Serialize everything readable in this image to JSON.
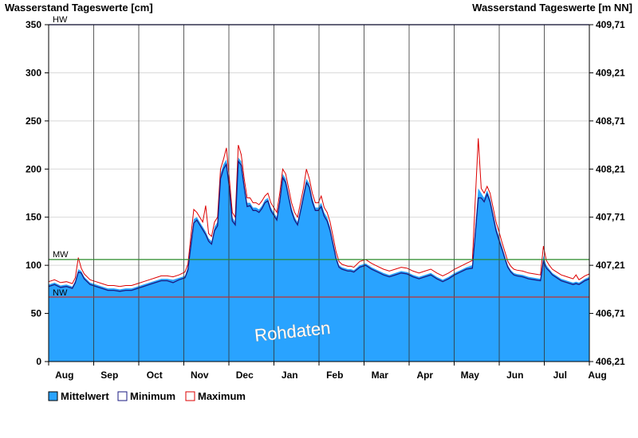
{
  "chart_data": {
    "type": "area",
    "title_left": "Wasserstand Tageswerte [cm]",
    "title_right": "Wasserstand Tageswerte [m NN]",
    "watermark": "Rohdaten",
    "ylim": [
      0,
      350
    ],
    "y_ticks": [
      0,
      50,
      100,
      150,
      200,
      250,
      300,
      350
    ],
    "y2_ticks": [
      "406,21",
      "406,71",
      "407,21",
      "407,71",
      "408,21",
      "408,71",
      "409,21",
      "409,71"
    ],
    "x_month_labels": [
      "Aug",
      "Sep",
      "Oct",
      "Nov",
      "Dec",
      "Jan",
      "Feb",
      "Mar",
      "Apr",
      "May",
      "Jun",
      "Jul",
      "Aug"
    ],
    "x_domain_days": [
      0,
      365
    ],
    "reference_lines": [
      {
        "label": "HW",
        "value": 350,
        "color": "#2222cc"
      },
      {
        "label": "MW",
        "value": 106,
        "color": "#2a8a2a"
      },
      {
        "label": "NW",
        "value": 67,
        "color": "#c03030"
      }
    ],
    "colors": {
      "mean_fill": "#29a3ff",
      "minimum": "#1a1a80",
      "maximum": "#dd0000",
      "grid": "#d8d8d8"
    },
    "series": [
      {
        "name": "Mittelwert",
        "x": [
          0,
          4,
          8,
          12,
          16,
          18,
          20,
          22,
          24,
          28,
          32,
          36,
          40,
          44,
          48,
          52,
          56,
          60,
          64,
          68,
          72,
          76,
          80,
          84,
          88,
          92,
          94,
          96,
          98,
          100,
          102,
          104,
          106,
          108,
          110,
          112,
          114,
          116,
          118,
          120,
          122,
          124,
          126,
          128,
          130,
          132,
          134,
          136,
          138,
          140,
          142,
          144,
          146,
          148,
          150,
          152,
          154,
          156,
          158,
          160,
          162,
          164,
          166,
          168,
          170,
          172,
          174,
          176,
          178,
          180,
          182,
          184,
          186,
          188,
          190,
          192,
          194,
          196,
          198,
          200,
          202,
          204,
          206,
          210,
          214,
          218,
          222,
          226,
          230,
          234,
          238,
          242,
          246,
          250,
          254,
          258,
          262,
          266,
          270,
          274,
          278,
          282,
          286,
          290,
          292,
          294,
          296,
          298,
          300,
          302,
          304,
          306,
          308,
          310,
          312,
          314,
          316,
          320,
          324,
          328,
          332,
          334,
          336,
          338,
          340,
          342,
          344,
          346,
          348,
          350,
          352,
          354,
          356,
          358,
          360,
          362,
          365
        ],
        "values": [
          80,
          82,
          79,
          80,
          78,
          84,
          96,
          94,
          88,
          82,
          80,
          78,
          76,
          76,
          75,
          76,
          76,
          78,
          80,
          82,
          84,
          86,
          86,
          85,
          87,
          89,
          98,
          125,
          148,
          150,
          145,
          140,
          135,
          128,
          125,
          140,
          145,
          195,
          205,
          210,
          185,
          150,
          145,
          212,
          208,
          185,
          165,
          165,
          160,
          160,
          158,
          162,
          168,
          170,
          160,
          155,
          150,
          170,
          195,
          190,
          175,
          160,
          150,
          145,
          160,
          175,
          190,
          185,
          170,
          160,
          160,
          165,
          155,
          150,
          140,
          125,
          110,
          100,
          98,
          97,
          96,
          96,
          95,
          100,
          102,
          98,
          95,
          92,
          90,
          92,
          94,
          93,
          90,
          88,
          90,
          92,
          88,
          85,
          88,
          92,
          95,
          98,
          100,
          180,
          175,
          170,
          178,
          170,
          155,
          140,
          130,
          120,
          110,
          100,
          95,
          92,
          91,
          90,
          88,
          87,
          86,
          110,
          100,
          96,
          92,
          90,
          88,
          86,
          85,
          84,
          83,
          82,
          83,
          82,
          84,
          86,
          88
        ]
      },
      {
        "name": "Minimum",
        "x": [
          0,
          4,
          8,
          12,
          16,
          18,
          20,
          22,
          24,
          28,
          32,
          36,
          40,
          44,
          48,
          52,
          56,
          60,
          64,
          68,
          72,
          76,
          80,
          84,
          88,
          92,
          94,
          96,
          98,
          100,
          102,
          104,
          106,
          108,
          110,
          112,
          114,
          116,
          118,
          120,
          122,
          124,
          126,
          128,
          130,
          132,
          134,
          136,
          138,
          140,
          142,
          144,
          146,
          148,
          150,
          152,
          154,
          156,
          158,
          160,
          162,
          164,
          166,
          168,
          170,
          172,
          174,
          176,
          178,
          180,
          182,
          184,
          186,
          188,
          190,
          192,
          194,
          196,
          198,
          200,
          202,
          204,
          206,
          210,
          214,
          218,
          222,
          226,
          230,
          234,
          238,
          242,
          246,
          250,
          254,
          258,
          262,
          266,
          270,
          274,
          278,
          282,
          286,
          290,
          292,
          294,
          296,
          298,
          300,
          302,
          304,
          306,
          308,
          310,
          312,
          314,
          316,
          320,
          324,
          328,
          332,
          334,
          336,
          338,
          340,
          342,
          344,
          346,
          348,
          350,
          352,
          354,
          356,
          358,
          360,
          362,
          365
        ],
        "values": [
          78,
          80,
          77,
          78,
          76,
          82,
          93,
          92,
          86,
          80,
          78,
          76,
          74,
          74,
          73,
          74,
          74,
          76,
          78,
          80,
          82,
          84,
          84,
          82,
          85,
          87,
          95,
          120,
          144,
          147,
          142,
          137,
          132,
          125,
          122,
          136,
          141,
          190,
          200,
          205,
          180,
          146,
          142,
          208,
          204,
          181,
          161,
          162,
          157,
          157,
          155,
          159,
          165,
          167,
          157,
          152,
          147,
          166,
          191,
          186,
          171,
          156,
          147,
          142,
          156,
          171,
          186,
          181,
          166,
          157,
          157,
          161,
          151,
          146,
          136,
          122,
          107,
          98,
          96,
          95,
          94,
          94,
          93,
          98,
          100,
          96,
          93,
          90,
          88,
          90,
          92,
          91,
          88,
          86,
          88,
          90,
          86,
          83,
          86,
          90,
          93,
          96,
          97,
          170,
          170,
          166,
          174,
          166,
          151,
          136,
          126,
          117,
          107,
          98,
          93,
          90,
          89,
          88,
          86,
          85,
          84,
          104,
          97,
          94,
          90,
          88,
          86,
          84,
          83,
          82,
          81,
          80,
          81,
          80,
          82,
          84,
          86
        ]
      },
      {
        "name": "Maximum",
        "x": [
          0,
          4,
          8,
          12,
          16,
          18,
          20,
          22,
          24,
          28,
          32,
          36,
          40,
          44,
          48,
          52,
          56,
          60,
          64,
          68,
          72,
          76,
          80,
          84,
          88,
          92,
          94,
          96,
          98,
          100,
          102,
          104,
          106,
          108,
          110,
          112,
          114,
          116,
          118,
          120,
          122,
          124,
          126,
          128,
          130,
          132,
          134,
          136,
          138,
          140,
          142,
          144,
          146,
          148,
          150,
          152,
          154,
          156,
          158,
          160,
          162,
          164,
          166,
          168,
          170,
          172,
          174,
          176,
          178,
          180,
          182,
          184,
          186,
          188,
          190,
          192,
          194,
          196,
          198,
          200,
          202,
          204,
          206,
          210,
          214,
          218,
          222,
          226,
          230,
          234,
          238,
          242,
          246,
          250,
          254,
          258,
          262,
          266,
          270,
          274,
          278,
          282,
          286,
          290,
          292,
          294,
          296,
          298,
          300,
          302,
          304,
          306,
          308,
          310,
          312,
          314,
          316,
          320,
          324,
          328,
          332,
          334,
          336,
          338,
          340,
          342,
          344,
          346,
          348,
          350,
          352,
          354,
          356,
          358,
          360,
          362,
          365
        ],
        "values": [
          83,
          85,
          82,
          83,
          81,
          87,
          108,
          97,
          91,
          85,
          83,
          81,
          79,
          79,
          78,
          79,
          79,
          81,
          83,
          85,
          87,
          89,
          89,
          88,
          90,
          93,
          101,
          130,
          158,
          155,
          150,
          145,
          162,
          133,
          130,
          145,
          150,
          200,
          210,
          222,
          190,
          155,
          150,
          225,
          215,
          190,
          170,
          170,
          165,
          165,
          163,
          167,
          172,
          175,
          165,
          160,
          155,
          175,
          200,
          195,
          180,
          165,
          155,
          150,
          165,
          180,
          200,
          190,
          175,
          165,
          165,
          172,
          160,
          155,
          145,
          130,
          114,
          104,
          101,
          100,
          99,
          99,
          98,
          104,
          106,
          102,
          99,
          96,
          94,
          96,
          98,
          97,
          94,
          92,
          94,
          96,
          92,
          89,
          92,
          96,
          99,
          102,
          105,
          232,
          180,
          175,
          182,
          175,
          160,
          145,
          135,
          124,
          114,
          104,
          99,
          96,
          95,
          94,
          92,
          91,
          90,
          120,
          105,
          100,
          96,
          94,
          92,
          90,
          89,
          88,
          87,
          86,
          90,
          85,
          87,
          89,
          91
        ]
      }
    ]
  },
  "legend": [
    {
      "label": "Mittelwert",
      "swatch_fill": "#29a3ff",
      "swatch_stroke": "#000000"
    },
    {
      "label": "Minimum",
      "swatch_fill": "#ffffff",
      "swatch_stroke": "#1a1a80"
    },
    {
      "label": "Maximum",
      "swatch_fill": "#ffffff",
      "swatch_stroke": "#dd0000"
    }
  ]
}
